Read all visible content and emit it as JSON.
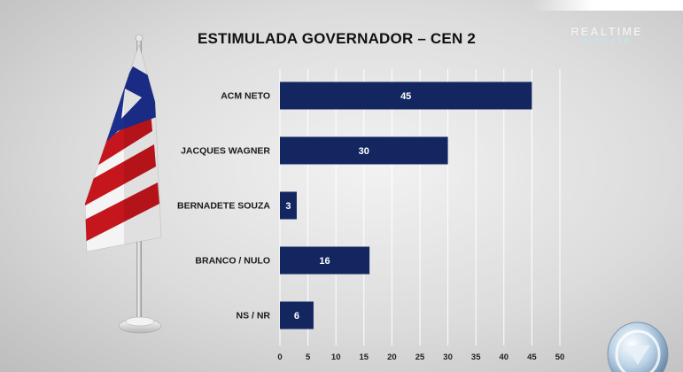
{
  "brand": {
    "line1": "REALTIME",
    "line2": "BIGDATA"
  },
  "chart_data": {
    "type": "bar",
    "orientation": "horizontal",
    "title": "ESTIMULADA GOVERNADOR – CEN 2",
    "categories": [
      "ACM NETO",
      "JACQUES WAGNER",
      "BERNADETE SOUZA",
      "BRANCO / NULO",
      "NS / NR"
    ],
    "values": [
      45,
      30,
      3,
      16,
      6
    ],
    "data_labels": [
      "45",
      "30",
      "3",
      "16",
      "6"
    ],
    "xlim": [
      0,
      50
    ],
    "x_ticks": [
      0,
      5,
      10,
      15,
      20,
      25,
      30,
      35,
      40,
      45,
      50
    ],
    "grid": true,
    "bar_color": "#132660",
    "gridline_color": "#ffffff"
  },
  "colors": {
    "flag_red": "#c4161c",
    "flag_blue": "#1c2f8f",
    "flag_white": "#f4f4f4"
  }
}
